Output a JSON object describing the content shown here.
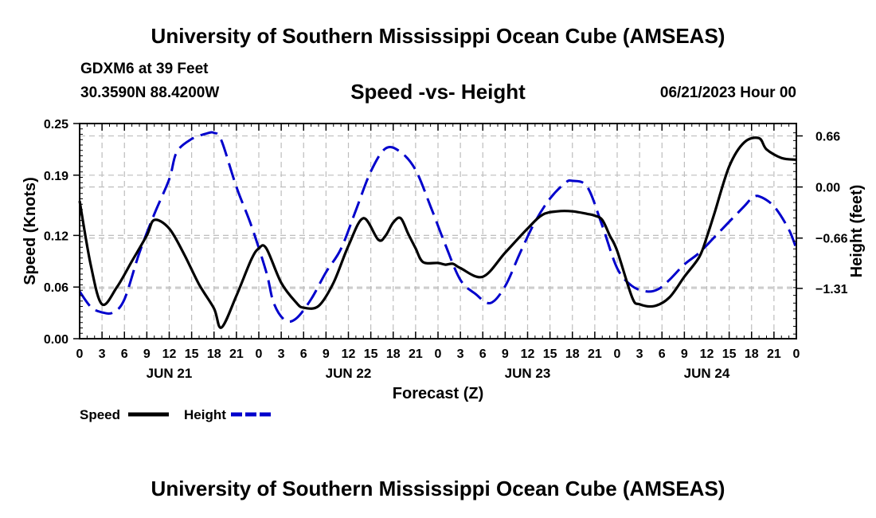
{
  "header": {
    "title": "University of Southern Mississippi Ocean Cube (AMSEAS)",
    "station": "GDXM6 at 39 Feet",
    "coords": "30.3590N  88.4200W",
    "subtitle": "Speed -vs- Height",
    "datetime": "06/21/2023 Hour 00"
  },
  "footer": {
    "title": "University of Southern Mississippi Ocean Cube (AMSEAS)"
  },
  "chart_data": {
    "type": "line",
    "xlabel": "Forecast (Z)",
    "x_unit": "hours since 06/21/2023 00Z",
    "xlim": [
      0,
      96
    ],
    "x_ticks": [
      0,
      3,
      6,
      9,
      12,
      15,
      18,
      21,
      24,
      27,
      30,
      33,
      36,
      39,
      42,
      45,
      48,
      51,
      54,
      57,
      60,
      63,
      66,
      69,
      72,
      75,
      78,
      81,
      84,
      87,
      90,
      93,
      96
    ],
    "x_tick_labels": [
      "0",
      "3",
      "6",
      "9",
      "12",
      "15",
      "18",
      "21",
      "0",
      "3",
      "6",
      "9",
      "12",
      "15",
      "18",
      "21",
      "0",
      "3",
      "6",
      "9",
      "12",
      "15",
      "18",
      "21",
      "0",
      "3",
      "6",
      "9",
      "12",
      "15",
      "18",
      "21",
      "0"
    ],
    "day_labels": [
      {
        "hour": 12,
        "label": "JUN 21"
      },
      {
        "hour": 36,
        "label": "JUN 22"
      },
      {
        "hour": 60,
        "label": "JUN 23"
      },
      {
        "hour": 84,
        "label": "JUN 24"
      }
    ],
    "left_axis": {
      "label": "Speed (Knots)",
      "ylim": [
        0,
        0.25
      ],
      "ticks": [
        0,
        0.06,
        0.12,
        0.19,
        0.25
      ],
      "tick_labels": [
        "0.00",
        "0.06",
        "0.12",
        "0.19",
        "0.25"
      ]
    },
    "right_axis": {
      "label": "Height (feet)",
      "ylim": [
        -1.96,
        0.82
      ],
      "ticks": [
        0.66,
        0,
        -0.66,
        -1.31
      ],
      "tick_labels": [
        "0.66",
        "0.00",
        "−0.66",
        "−1.31"
      ]
    },
    "grid": true,
    "legend_position": "bottom-left",
    "series": [
      {
        "name": "Speed",
        "axis": "left",
        "color": "#000000",
        "dash": "solid",
        "x": [
          0,
          1.5,
          3,
          5,
          7,
          9,
          10,
          12,
          14,
          16,
          18,
          19,
          21,
          23,
          24,
          25,
          27,
          29,
          30,
          32,
          34,
          36,
          38,
          40,
          41,
          42,
          43,
          44,
          45,
          46,
          48,
          49,
          50,
          51,
          54,
          57,
          60,
          62,
          64,
          66,
          68,
          69,
          70,
          71,
          72,
          74,
          75,
          77,
          79,
          81,
          83,
          84,
          85,
          87,
          89,
          91,
          92,
          94,
          96
        ],
        "values": [
          0.16,
          0.085,
          0.04,
          0.06,
          0.09,
          0.12,
          0.138,
          0.128,
          0.098,
          0.063,
          0.035,
          0.013,
          0.05,
          0.092,
          0.105,
          0.105,
          0.065,
          0.042,
          0.036,
          0.038,
          0.065,
          0.108,
          0.14,
          0.115,
          0.12,
          0.135,
          0.14,
          0.122,
          0.105,
          0.089,
          0.088,
          0.086,
          0.087,
          0.082,
          0.072,
          0.1,
          0.128,
          0.144,
          0.148,
          0.148,
          0.145,
          0.143,
          0.138,
          0.12,
          0.102,
          0.048,
          0.04,
          0.038,
          0.048,
          0.072,
          0.095,
          0.118,
          0.145,
          0.2,
          0.228,
          0.233,
          0.22,
          0.21,
          0.208
        ],
        "note": "values after hour 89 estimated from plot"
      },
      {
        "name": "Height",
        "axis": "left_scaled_from_right",
        "color": "#0000cc",
        "dash": "dashed",
        "x": [
          0,
          1.5,
          3,
          4.5,
          6,
          8,
          10,
          12,
          13,
          15,
          17,
          18,
          19,
          21,
          23,
          25,
          26,
          27.5,
          29,
          31,
          33,
          35,
          37,
          39,
          41,
          43,
          45,
          47,
          49,
          51,
          53,
          55,
          57,
          59,
          61,
          63,
          65,
          66,
          68,
          70,
          72,
          74,
          76,
          77.5,
          79,
          81,
          83,
          85,
          87,
          89,
          90,
          91,
          93,
          95,
          96
        ],
        "values": [
          -1.35,
          -1.55,
          -1.62,
          -1.62,
          -1.45,
          -0.85,
          -0.35,
          0.1,
          0.45,
          0.62,
          0.69,
          0.7,
          0.6,
          0.0,
          -0.5,
          -1.1,
          -1.5,
          -1.72,
          -1.7,
          -1.45,
          -1.1,
          -0.8,
          -0.3,
          0.2,
          0.5,
          0.45,
          0.22,
          -0.25,
          -0.75,
          -1.2,
          -1.38,
          -1.5,
          -1.28,
          -0.85,
          -0.45,
          -0.15,
          0.05,
          0.08,
          0.0,
          -0.5,
          -1.05,
          -1.28,
          -1.35,
          -1.32,
          -1.2,
          -1.0,
          -0.85,
          -0.65,
          -0.45,
          -0.25,
          -0.15,
          -0.12,
          -0.25,
          -0.55,
          -0.8
        ],
        "note": "values after hour 89 estimated from plot"
      }
    ]
  }
}
